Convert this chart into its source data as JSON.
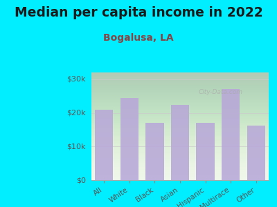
{
  "title": "Median per capita income in 2022",
  "subtitle": "Bogalusa, LA",
  "categories": [
    "All",
    "White",
    "Black",
    "Asian",
    "Hispanic",
    "Multirace",
    "Other"
  ],
  "values": [
    21000,
    24500,
    17000,
    22300,
    17000,
    27000,
    16200
  ],
  "bar_color": "#b8a8d8",
  "background_color": "#00eeff",
  "title_color": "#1a1a1a",
  "subtitle_color": "#884444",
  "tick_label_color": "#555555",
  "ylim": [
    0,
    32000
  ],
  "yticks": [
    0,
    10000,
    20000,
    30000
  ],
  "ytick_labels": [
    "$0",
    "$10k",
    "$20k",
    "$30k"
  ],
  "title_fontsize": 13.5,
  "subtitle_fontsize": 10,
  "watermark": "City-Data.com"
}
